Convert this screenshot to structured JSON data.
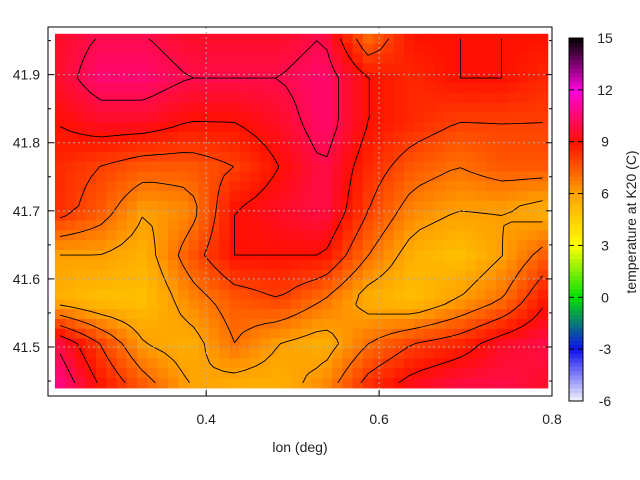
{
  "chart_data": {
    "type": "heatmap",
    "title": "",
    "xlabel": "lon (deg)",
    "ylabel": "",
    "cblabel": "temperature at K20 (C)",
    "xlim": [
      0.217,
      0.8
    ],
    "ylim": [
      41.428,
      41.97
    ],
    "cblim": [
      -6,
      15
    ],
    "xticks": [
      "0.4",
      "0.6",
      "0.8"
    ],
    "yticks": [
      "41.5",
      "41.6",
      "41.7",
      "41.8",
      "41.9"
    ],
    "cbticks": [
      "-6",
      "-3",
      "0",
      "3",
      "6",
      "9",
      "12",
      "15"
    ],
    "grid": true,
    "contours": true,
    "data_extent": {
      "lon": [
        0.225,
        0.795
      ],
      "lat": [
        41.44,
        41.96
      ]
    },
    "grid_values_north_to_south": [
      [
        9.5,
        10,
        10,
        9.5,
        9.5,
        9.5,
        10,
        7,
        9,
        9,
        9,
        9
      ],
      [
        9.5,
        10.5,
        10.5,
        10,
        10,
        10,
        10.5,
        9,
        8.5,
        9,
        9,
        8.5
      ],
      [
        9,
        9.5,
        9.5,
        9,
        9,
        9.5,
        10.5,
        9,
        8.5,
        8,
        8,
        8
      ],
      [
        8.5,
        8,
        7.5,
        7.5,
        8,
        9,
        10,
        8.5,
        7.5,
        7,
        7.5,
        7.5
      ],
      [
        8.5,
        7.5,
        6,
        6.5,
        9,
        9.5,
        10,
        8,
        6.5,
        6,
        6,
        5.5
      ],
      [
        6,
        6,
        5.5,
        7.5,
        9,
        9,
        9,
        7,
        5.5,
        5,
        6,
        7.5
      ],
      [
        5.5,
        5,
        5,
        6.5,
        7.5,
        8,
        7,
        5.5,
        5,
        6,
        7,
        9
      ],
      [
        10,
        8,
        6,
        5.5,
        7,
        6,
        5.5,
        7,
        8,
        8.5,
        9.5,
        10
      ],
      [
        11,
        9,
        7.5,
        6,
        5.5,
        5.5,
        6.5,
        8.5,
        9.5,
        10,
        10,
        9.5
      ]
    ],
    "palette": [
      [
        -6,
        "#f4f4ff"
      ],
      [
        -3,
        "#1010f0"
      ],
      [
        0,
        "#00e000"
      ],
      [
        3,
        "#ffff00"
      ],
      [
        6,
        "#ffa000"
      ],
      [
        9,
        "#ff1000"
      ],
      [
        12,
        "#ff00e0"
      ],
      [
        15,
        "#000000"
      ]
    ]
  }
}
